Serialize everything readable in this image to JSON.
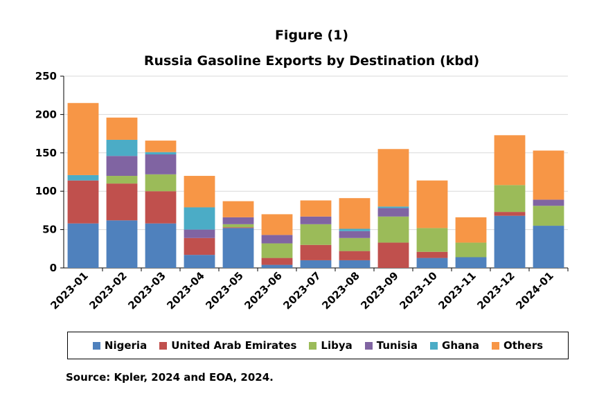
{
  "colors": {
    "Nigeria": "#4F81BD",
    "United Arab Emirates": "#C0504D",
    "Libya": "#9BBB59",
    "Tunisia": "#8064A2",
    "Ghana": "#4BACC6",
    "Others": "#F79646"
  },
  "source": "Source: Kpler, 2024 and EOA, 2024.",
  "chart_data": {
    "type": "bar",
    "stacked": true,
    "title": "Figure (1)",
    "subtitle": "Russia Gasoline Exports by Destination  (kbd)",
    "xlabel": "",
    "ylabel": "",
    "ylim": [
      0,
      250
    ],
    "yticks": [
      "0",
      "50",
      "100",
      "150",
      "200",
      "250"
    ],
    "grid": true,
    "legend": "bottom",
    "categories": [
      "2023-01",
      "2023-02",
      "2023-03",
      "2023-04",
      "2023-05",
      "2023-06",
      "2023-07",
      "2023-08",
      "2023-09",
      "2023-10",
      "2023-11",
      "2023-12",
      "2024-01"
    ],
    "series": [
      {
        "name": "Nigeria",
        "values": [
          58,
          62,
          58,
          17,
          52,
          4,
          10,
          10,
          0,
          13,
          14,
          68,
          55
        ]
      },
      {
        "name": "United Arab Emirates",
        "values": [
          56,
          48,
          42,
          22,
          1,
          9,
          20,
          12,
          33,
          8,
          0,
          5,
          0
        ]
      },
      {
        "name": "Libya",
        "values": [
          0,
          10,
          22,
          0,
          4,
          19,
          27,
          17,
          34,
          31,
          19,
          35,
          26
        ]
      },
      {
        "name": "Tunisia",
        "values": [
          0,
          26,
          26,
          11,
          9,
          11,
          10,
          9,
          11,
          0,
          0,
          0,
          8
        ]
      },
      {
        "name": "Ghana",
        "values": [
          7,
          21,
          3,
          29,
          0,
          0,
          0,
          3,
          2,
          0,
          0,
          0,
          0
        ]
      },
      {
        "name": "Others",
        "values": [
          94,
          29,
          15,
          41,
          21,
          27,
          21,
          40,
          75,
          62,
          33,
          65,
          64
        ]
      }
    ]
  }
}
